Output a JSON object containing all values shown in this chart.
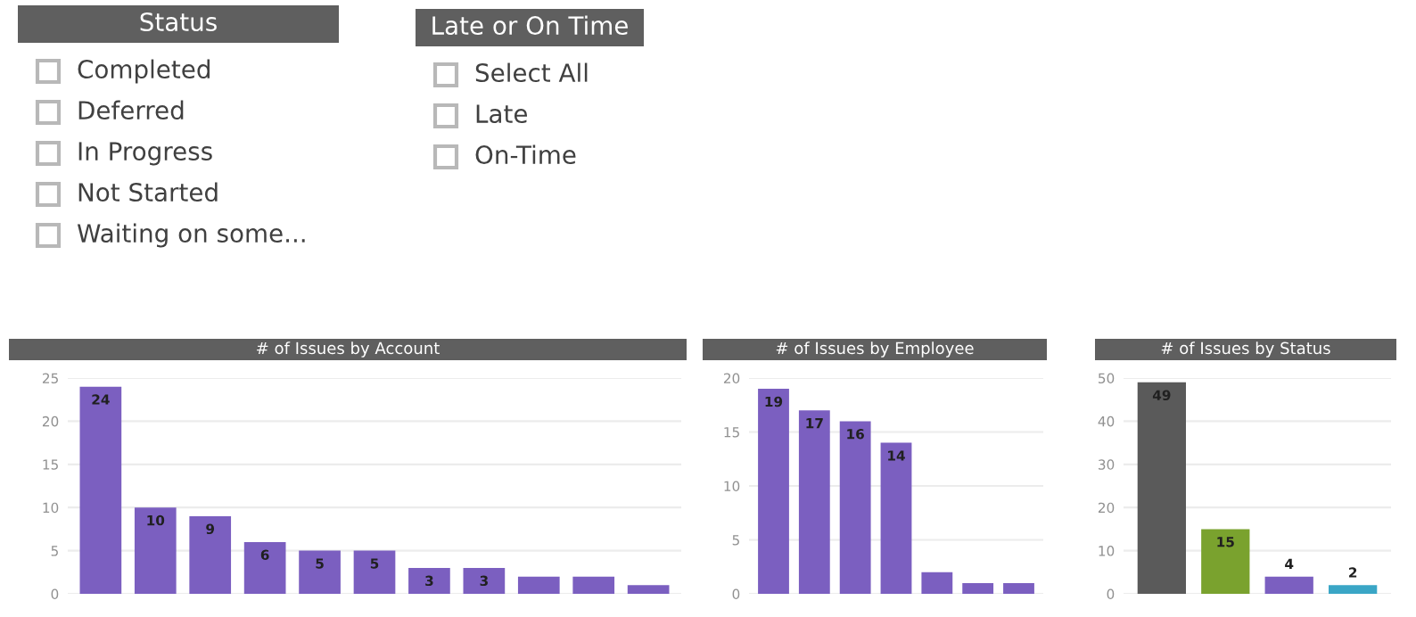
{
  "chart_data": [
    {
      "type": "other",
      "title": "Status",
      "annotations": [
        "Completed",
        "Deferred",
        "In Progress",
        "Not Started",
        "Waiting on some..."
      ]
    },
    {
      "type": "other",
      "title": "Late or On Time",
      "annotations": [
        "Select All",
        "Late",
        "On-Time"
      ]
    },
    {
      "type": "bar",
      "title": "# of Issues by Account",
      "categories": [
        null,
        null,
        null,
        null,
        null,
        null,
        null,
        null,
        null,
        null,
        null
      ],
      "values": [
        24,
        10,
        9,
        6,
        5,
        5,
        3,
        3,
        2,
        2,
        1
      ],
      "color": "#7b5fc0",
      "value_labels": [
        "24",
        "10",
        "9",
        "6",
        "5",
        "5",
        "3",
        "3",
        null,
        null,
        null
      ],
      "ylim": [
        0,
        25
      ],
      "yticks": [
        0,
        5,
        10,
        15,
        20,
        25
      ],
      "grid": "y",
      "tick_labels": "y"
    },
    {
      "type": "bar",
      "title": "# of Issues by Employee",
      "categories": [
        null,
        null,
        null,
        null,
        null,
        null,
        null
      ],
      "values": [
        19,
        17,
        16,
        14,
        2,
        1,
        1
      ],
      "color": "#7b5fc0",
      "value_labels": [
        "19",
        "17",
        "16",
        "14",
        null,
        null,
        null
      ],
      "ylim": [
        0,
        20
      ],
      "yticks": [
        0,
        5,
        10,
        15,
        20
      ],
      "grid": "y",
      "tick_labels": "y"
    },
    {
      "type": "bar",
      "title": "# of Issues by Status",
      "categories": [
        null,
        null,
        null,
        null
      ],
      "values": [
        49,
        15,
        4,
        2
      ],
      "colors": [
        "#5a5a5a",
        "#7aa22e",
        "#7b5fc0",
        "#3aa6c6"
      ],
      "data_labels": true,
      "ylim": [
        0,
        50
      ],
      "yticks": [
        0,
        10,
        20,
        30,
        40,
        50
      ],
      "grid": "y",
      "tick_labels": "y"
    }
  ]
}
